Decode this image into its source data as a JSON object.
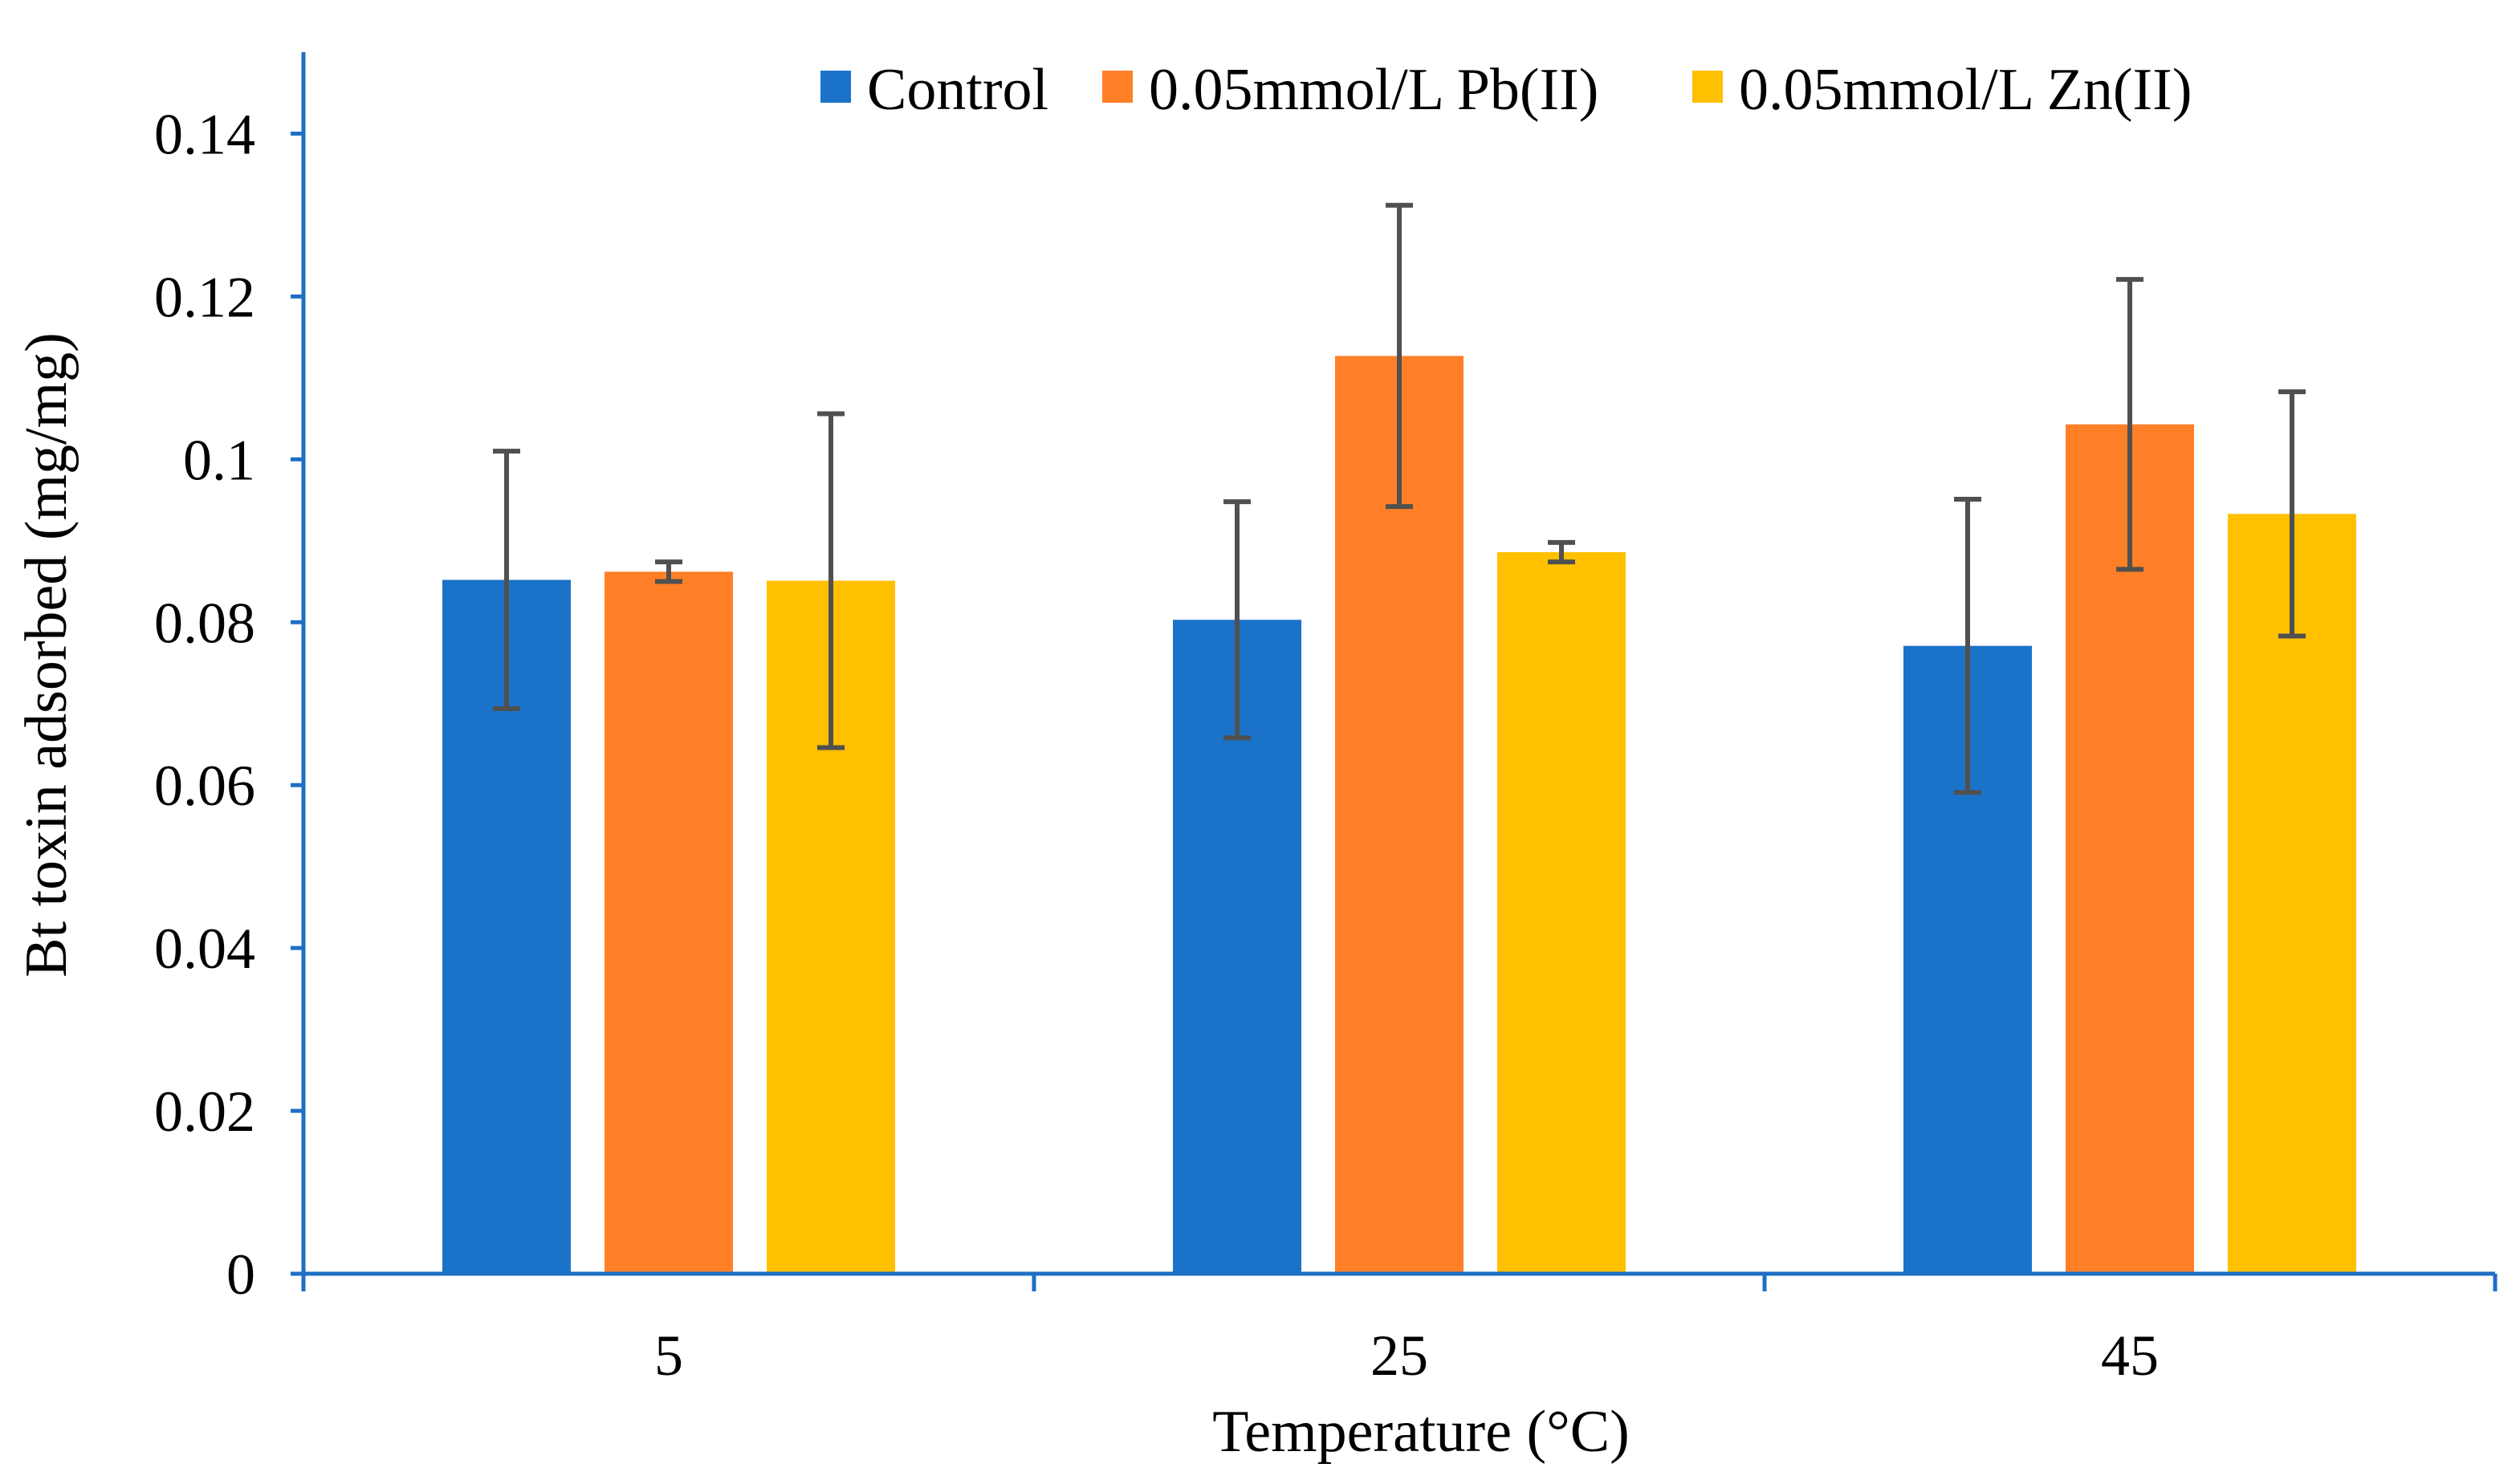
{
  "chart_data": {
    "type": "bar",
    "title": "",
    "xlabel": "Temperature (°C)",
    "ylabel": "Bt toxin adsorbed (mg/mg)",
    "categories": [
      "5",
      "25",
      "45"
    ],
    "ylim": [
      0,
      0.15
    ],
    "yticks": [
      0,
      0.02,
      0.04,
      0.06,
      0.08,
      0.1,
      0.12,
      0.14
    ],
    "ytick_labels": [
      "0",
      "0.02",
      "0.04",
      "0.06",
      "0.08",
      "0.1",
      "0.12",
      "0.14"
    ],
    "grid": false,
    "legend_position": "top",
    "axis_color": "#1F6FC5",
    "error_bar_color": "#505050",
    "series": [
      {
        "name": "Control",
        "color": "#1A73C8",
        "values": [
          0.0852,
          0.0803,
          0.0771
        ],
        "errors": [
          0.0158,
          0.0145,
          0.018
        ]
      },
      {
        "name": "0.05mmol/L Pb(II)",
        "color": "#FF7F27",
        "values": [
          0.0862,
          0.1127,
          0.1043
        ],
        "errors": [
          0.0012,
          0.0185,
          0.0178
        ]
      },
      {
        "name": "0.05mmol/L Zn(II)",
        "color": "#FFC000",
        "values": [
          0.0851,
          0.0886,
          0.0933
        ],
        "errors": [
          0.0205,
          0.0012,
          0.015
        ]
      }
    ]
  }
}
